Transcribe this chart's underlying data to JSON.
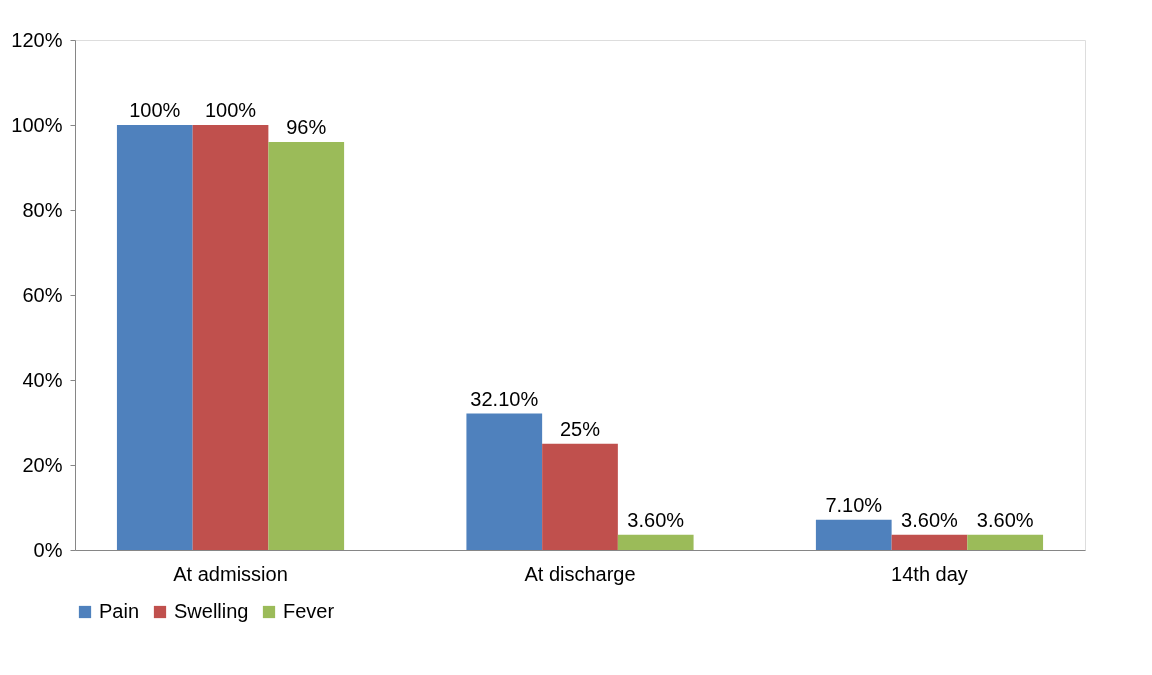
{
  "chart_data": {
    "type": "bar",
    "categories": [
      "At admission",
      "At discharge",
      "14th day"
    ],
    "series": [
      {
        "name": "Pain",
        "color": "#4f81bd",
        "values": [
          100,
          32.1,
          7.1
        ],
        "value_labels": [
          "100%",
          "32.10%",
          "7.10%"
        ]
      },
      {
        "name": "Swelling",
        "color": "#c0504d",
        "values": [
          100,
          25,
          3.6
        ],
        "value_labels": [
          "100%",
          "25%",
          "3.60%"
        ]
      },
      {
        "name": "Fever",
        "color": "#9bbb59",
        "values": [
          96,
          3.6,
          3.6
        ],
        "value_labels": [
          "96%",
          "3.60%",
          "3.60%"
        ]
      }
    ],
    "ylim": [
      0,
      120
    ],
    "yticks": [
      {
        "value": 0,
        "label": "0%"
      },
      {
        "value": 20,
        "label": "20%"
      },
      {
        "value": 40,
        "label": "40%"
      },
      {
        "value": 60,
        "label": "60%"
      },
      {
        "value": 80,
        "label": "80%"
      },
      {
        "value": 100,
        "label": "100%"
      },
      {
        "value": 120,
        "label": "120%"
      }
    ],
    "grid": false,
    "legend": "bottom"
  }
}
